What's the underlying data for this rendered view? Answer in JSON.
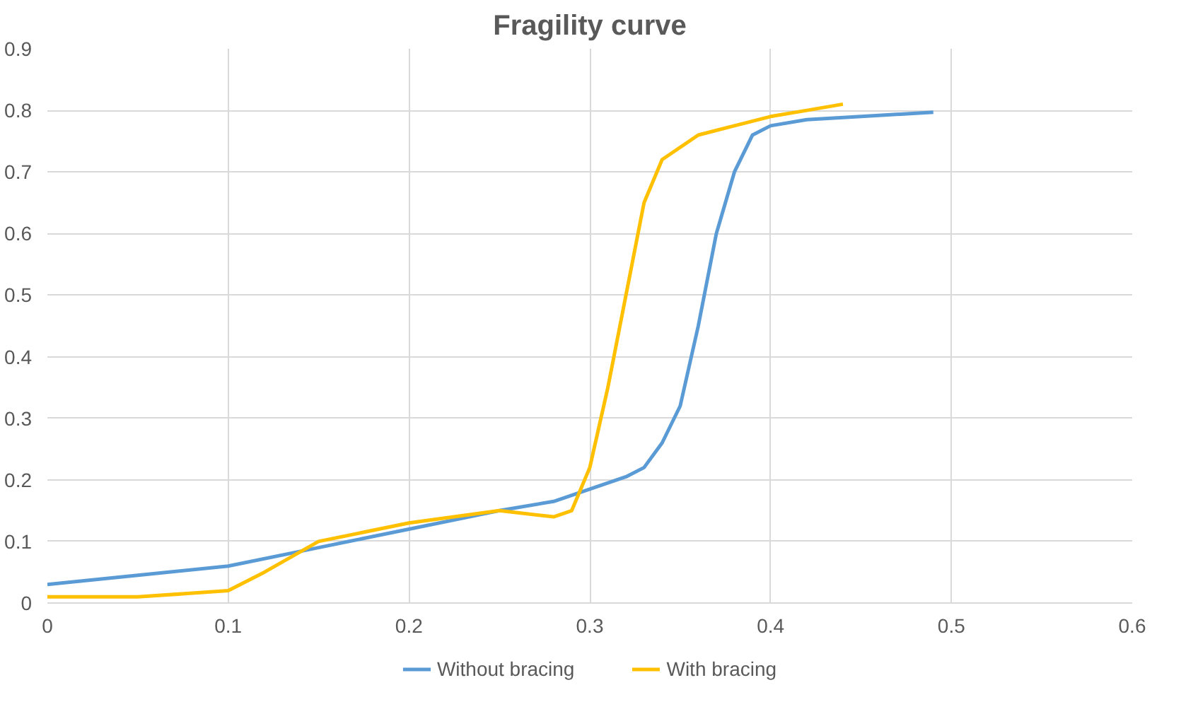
{
  "chart_data": {
    "type": "line",
    "title": "Fragility curve",
    "xlim": [
      0,
      0.6
    ],
    "xticks": [
      0,
      0.1,
      0.2,
      0.3,
      0.4,
      0.5,
      0.6
    ],
    "ylim": [
      0,
      0.9
    ],
    "yticks": [
      0,
      0.1,
      0.2,
      0.3,
      0.4,
      0.5,
      0.6,
      0.7,
      0.8,
      0.9
    ],
    "grid": true,
    "legend": "bottom",
    "marker": "none",
    "line_style": "solid",
    "series": [
      {
        "name": "Without bracing",
        "color": "#5b9bd5",
        "x": [
          0,
          0.05,
          0.1,
          0.15,
          0.2,
          0.25,
          0.28,
          0.3,
          0.32,
          0.33,
          0.34,
          0.35,
          0.36,
          0.37,
          0.38,
          0.39,
          0.4,
          0.42,
          0.45,
          0.49
        ],
        "values": [
          0.03,
          0.045,
          0.06,
          0.09,
          0.12,
          0.15,
          0.165,
          0.185,
          0.205,
          0.22,
          0.26,
          0.32,
          0.45,
          0.6,
          0.7,
          0.76,
          0.775,
          0.785,
          0.79,
          0.797
        ]
      },
      {
        "name": "With bracing",
        "color": "#ffc000",
        "x": [
          0,
          0.05,
          0.1,
          0.12,
          0.15,
          0.2,
          0.25,
          0.28,
          0.29,
          0.3,
          0.31,
          0.32,
          0.33,
          0.34,
          0.36,
          0.38,
          0.4,
          0.42,
          0.44
        ],
        "values": [
          0.01,
          0.01,
          0.02,
          0.05,
          0.1,
          0.13,
          0.15,
          0.14,
          0.15,
          0.22,
          0.35,
          0.5,
          0.65,
          0.72,
          0.76,
          0.775,
          0.79,
          0.8,
          0.81
        ]
      }
    ]
  }
}
